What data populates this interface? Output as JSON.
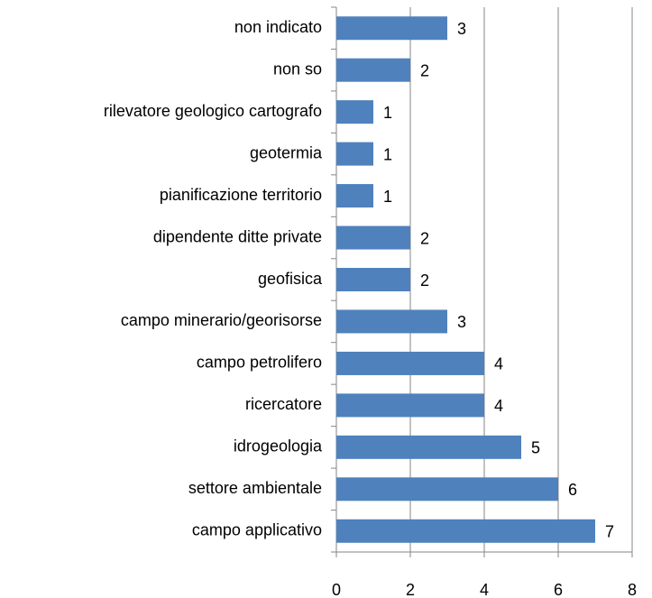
{
  "chart_data": {
    "type": "barh",
    "categories": [
      "non indicato",
      "non so",
      "rilevatore geologico cartografo",
      "geotermia",
      "pianificazione territorio",
      "dipendente ditte private",
      "geofisica",
      "campo minerario/georisorse",
      "campo petrolifero",
      "ricercatore",
      "idrogeologia",
      "settore ambientale",
      "campo applicativo"
    ],
    "values": [
      3,
      2,
      1,
      1,
      1,
      2,
      2,
      3,
      4,
      4,
      5,
      6,
      7
    ],
    "color": "#4f81bd",
    "xlim": [
      0,
      8
    ],
    "xticks": [
      0,
      2,
      4,
      6,
      8
    ],
    "grid": true
  }
}
